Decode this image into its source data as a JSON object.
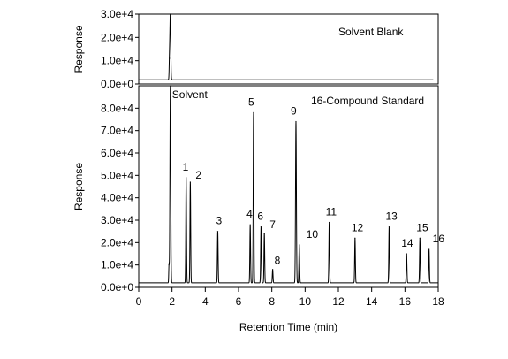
{
  "chart_data": [
    {
      "type": "line",
      "panel": "top",
      "title": "Solvent Blank",
      "xlabel": "",
      "ylabel": "Response",
      "xlim": [
        0,
        18
      ],
      "ylim": [
        0,
        30000
      ],
      "yticks": [
        0,
        10000,
        20000,
        30000
      ],
      "ytick_labels": [
        "0.0e+0",
        "1.0e+4",
        "2.0e+4",
        "3.0e+4"
      ],
      "baseline": 1800,
      "grid": false,
      "peaks": [
        {
          "rt": 1.9,
          "height": 30000,
          "width": 0.06,
          "label": ""
        },
        {
          "rt": 1.85,
          "height": 11000,
          "width": 0.05,
          "label": ""
        }
      ]
    },
    {
      "type": "line",
      "panel": "bottom",
      "title": "16-Compound Standard",
      "xlabel": "Retention Time (min)",
      "ylabel": "Response",
      "xlim": [
        0,
        18
      ],
      "ylim": [
        0,
        90000
      ],
      "xticks": [
        0,
        2,
        4,
        6,
        8,
        10,
        12,
        14,
        16,
        18
      ],
      "xtick_labels": [
        "0",
        "2",
        "4",
        "6",
        "8",
        "10",
        "12",
        "14",
        "16",
        "18"
      ],
      "yticks": [
        0,
        10000,
        20000,
        30000,
        40000,
        50000,
        60000,
        70000,
        80000
      ],
      "ytick_labels": [
        "0.0e+0",
        "1.0e+4",
        "2.0e+4",
        "3.0e+4",
        "4.0e+4",
        "5.0e+4",
        "6.0e+4",
        "7.0e+4",
        "8.0e+4"
      ],
      "baseline": 2000,
      "grid": false,
      "peaks": [
        {
          "rt": 1.9,
          "height": 90000,
          "width": 0.06,
          "label": "Solvent"
        },
        {
          "rt": 1.82,
          "height": 10000,
          "width": 0.04,
          "label": ""
        },
        {
          "rt": 2.85,
          "height": 49000,
          "width": 0.05,
          "label": "1"
        },
        {
          "rt": 3.1,
          "height": 47000,
          "width": 0.05,
          "label": "2"
        },
        {
          "rt": 4.75,
          "height": 25000,
          "width": 0.05,
          "label": "3"
        },
        {
          "rt": 6.7,
          "height": 28000,
          "width": 0.05,
          "label": "4"
        },
        {
          "rt": 6.9,
          "height": 78000,
          "width": 0.05,
          "label": "5"
        },
        {
          "rt": 7.35,
          "height": 27000,
          "width": 0.05,
          "label": "6"
        },
        {
          "rt": 7.55,
          "height": 24000,
          "width": 0.05,
          "label": "7"
        },
        {
          "rt": 8.05,
          "height": 8000,
          "width": 0.05,
          "label": "8"
        },
        {
          "rt": 9.45,
          "height": 74000,
          "width": 0.06,
          "label": "9"
        },
        {
          "rt": 9.65,
          "height": 19000,
          "width": 0.05,
          "label": "10"
        },
        {
          "rt": 11.45,
          "height": 29000,
          "width": 0.05,
          "label": "11"
        },
        {
          "rt": 13.0,
          "height": 22000,
          "width": 0.05,
          "label": "12"
        },
        {
          "rt": 15.05,
          "height": 27000,
          "width": 0.05,
          "label": "13"
        },
        {
          "rt": 16.1,
          "height": 15000,
          "width": 0.05,
          "label": "14"
        },
        {
          "rt": 16.9,
          "height": 22000,
          "width": 0.05,
          "label": "15"
        },
        {
          "rt": 17.45,
          "height": 17000,
          "width": 0.05,
          "label": "16"
        }
      ]
    }
  ]
}
